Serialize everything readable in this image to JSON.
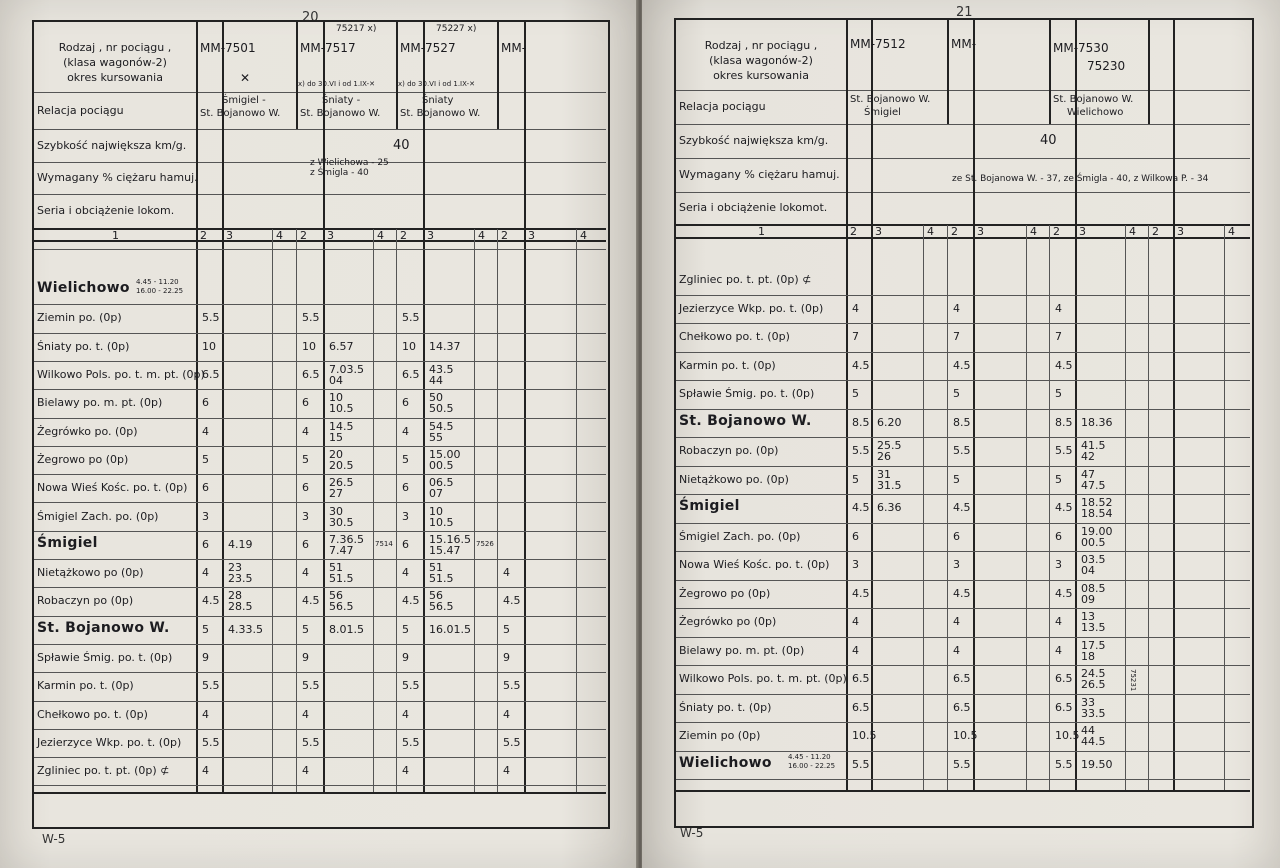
{
  "left": {
    "page_number": "20",
    "footer": "W-5",
    "header": {
      "rodzaj": [
        "Rodzaj , nr pociągu ,",
        "(klasa wagonów-2)",
        "okres kursowania"
      ],
      "relacja": "Relacja pociągu",
      "szybkosc": "Szybkość największa km/g.",
      "wymagany": "Wymagany % ciężaru hamuj.",
      "seria": "Seria i obciążenie lokom."
    },
    "trains": [
      {
        "code": "MM-7501",
        "note": "✕",
        "relation": [
          "Śmigiel -",
          "St. Bojanowo W."
        ]
      },
      {
        "code": "MM-7517",
        "top": "75217 x)",
        "note": "x) do 30.VI i od 1.IX-✕",
        "relation": [
          "Śniaty -",
          "St. Bojanowo W."
        ]
      },
      {
        "code": "MM-7527",
        "top": "75227 x)",
        "note": "x) do 30.VI i od 1.IX-✕",
        "relation": [
          "Śniaty",
          "St. Bojanowo W."
        ]
      },
      {
        "code": "MM-",
        "top": "",
        "note": "",
        "relation": [
          "",
          ""
        ]
      }
    ],
    "speed": "40",
    "brake": [
      "z Wielichowa  -  25",
      "z Śmigla  -  40"
    ],
    "col_numbers": [
      "1",
      "2",
      "3",
      "4",
      "2",
      "3",
      "4",
      "2",
      "3",
      "4",
      "2",
      "3",
      "4"
    ],
    "station_big_note": [
      "4.45 - 11.20",
      "16.00 - 22.25"
    ],
    "rows": [
      {
        "name": "Wielichowo",
        "big": true,
        "note": true,
        "c": [
          "",
          "",
          "",
          "",
          "",
          "",
          ""
        ]
      },
      {
        "name": "Ziemin po. (0p)",
        "c": [
          "5.5",
          "",
          "5.5",
          "",
          "5.5",
          "",
          ""
        ]
      },
      {
        "name": "Śniaty po. t. (0p)",
        "c": [
          "10",
          "",
          "10",
          "6.57",
          "10",
          "14.37",
          ""
        ]
      },
      {
        "name": "Wilkowo Pols. po. t. m. pt. (0p)",
        "c": [
          "6.5",
          "",
          "6.5",
          "7.03.5|04",
          "6.5",
          "43.5|44",
          ""
        ]
      },
      {
        "name": "Bielawy po. m. pt. (0p)",
        "c": [
          "6",
          "",
          "6",
          "10|10.5",
          "6",
          "50|50.5",
          ""
        ]
      },
      {
        "name": "Żegrówko po. (0p)",
        "c": [
          "4",
          "",
          "4",
          "14.5|15",
          "4",
          "54.5|55",
          ""
        ]
      },
      {
        "name": "Żegrowo po (0p)",
        "c": [
          "5",
          "",
          "5",
          "20|20.5",
          "5",
          "15.00|00.5",
          ""
        ]
      },
      {
        "name": "Nowa Wieś Kośc. po. t. (0p)",
        "c": [
          "6",
          "",
          "6",
          "26.5|27",
          "6",
          "06.5|07",
          ""
        ]
      },
      {
        "name": "Śmigiel Zach. po. (0p)",
        "c": [
          "3",
          "",
          "3",
          "30|30.5",
          "3",
          "10|10.5",
          ""
        ]
      },
      {
        "name": "Śmigiel",
        "big": true,
        "c": [
          "6",
          "4.19",
          "6",
          "7.36.5|7.47",
          "6",
          "15.16.5|15.47",
          ""
        ],
        "side": [
          "7514",
          "7526"
        ]
      },
      {
        "name": "Nietążkowo po (0p)",
        "c": [
          "4",
          "23|23.5",
          "4",
          "51|51.5",
          "4",
          "51|51.5",
          "4"
        ]
      },
      {
        "name": "Robaczyn po (0p)",
        "c": [
          "4.5",
          "28|28.5",
          "4.5",
          "56|56.5",
          "4.5",
          "56|56.5",
          "4.5"
        ]
      },
      {
        "name": "St. Bojanowo W.",
        "big": true,
        "c": [
          "5",
          "4.33.5",
          "5",
          "8.01.5",
          "5",
          "16.01.5",
          "5"
        ]
      },
      {
        "name": "Spławie Śmig. po. t. (0p)",
        "c": [
          "9",
          "",
          "9",
          "",
          "9",
          "",
          "9"
        ]
      },
      {
        "name": "Karmin po. t. (0p)",
        "c": [
          "5.5",
          "",
          "5.5",
          "",
          "5.5",
          "",
          "5.5"
        ]
      },
      {
        "name": "Chełkowo po. t. (0p)",
        "c": [
          "4",
          "",
          "4",
          "",
          "4",
          "",
          "4"
        ]
      },
      {
        "name": "Jezierzyce Wkp. po. t. (0p)",
        "c": [
          "5.5",
          "",
          "5.5",
          "",
          "5.5",
          "",
          "5.5"
        ]
      },
      {
        "name": "Zgliniec po. t. pt. (0p) ⊄",
        "c": [
          "4",
          "",
          "4",
          "",
          "4",
          "",
          "4"
        ]
      }
    ]
  },
  "right": {
    "page_number": "21",
    "footer": "W-5",
    "header": {
      "rodzaj": [
        "Rodzaj , nr pociągu ,",
        "(klasa wagonów-2)",
        "okres kursowania"
      ],
      "relacja": "Relacja pociągu",
      "szybkosc": "Szybkość największa km/g.",
      "wymagany": "Wymagany % ciężaru hamuj.",
      "seria": "Seria i obciążenie lokomot."
    },
    "trains": [
      {
        "code": "MM-7512",
        "relation": [
          "St. Bojanowo W.",
          "Śmigiel"
        ]
      },
      {
        "code": "MM-",
        "relation": [
          "",
          ""
        ]
      },
      {
        "code": "MM-7530",
        "code2": "75230",
        "relation": [
          "St. Bojanowo W.",
          "Wielichowo"
        ]
      }
    ],
    "speed": "40",
    "brake": "ze St. Bojanowa W. - 37, ze Śmigla - 40, z Wilkowa P. - 34",
    "col_numbers": [
      "1",
      "2",
      "3",
      "4",
      "2",
      "3",
      "4",
      "2",
      "3",
      "4",
      "2",
      "3",
      "4"
    ],
    "station_big_note": [
      "4.45 - 11.20",
      "16.00 - 22.25"
    ],
    "rows": [
      {
        "name": "Zgliniec po. t. pt. (0p) ⊄",
        "c": [
          "",
          "",
          "",
          "",
          "",
          "",
          ""
        ]
      },
      {
        "name": "Jezierzyce Wkp. po. t. (0p)",
        "c": [
          "4",
          "",
          "4",
          "",
          "4",
          "",
          ""
        ]
      },
      {
        "name": "Chełkowo po. t. (0p)",
        "c": [
          "7",
          "",
          "7",
          "",
          "7",
          "",
          ""
        ]
      },
      {
        "name": "Karmin po. t. (0p)",
        "c": [
          "4.5",
          "",
          "4.5",
          "",
          "4.5",
          "",
          ""
        ]
      },
      {
        "name": "Spławie Śmig. po. t. (0p)",
        "c": [
          "5",
          "",
          "5",
          "",
          "5",
          "",
          ""
        ]
      },
      {
        "name": "St. Bojanowo W.",
        "big": true,
        "c": [
          "8.5",
          "6.20",
          "8.5",
          "",
          "8.5",
          "18.36",
          ""
        ]
      },
      {
        "name": "Robaczyn po. (0p)",
        "c": [
          "5.5",
          "25.5|26",
          "5.5",
          "",
          "5.5",
          "41.5|42",
          ""
        ]
      },
      {
        "name": "Nietążkowo po. (0p)",
        "c": [
          "5",
          "31|31.5",
          "5",
          "",
          "5",
          "47|47.5",
          ""
        ]
      },
      {
        "name": "Śmigiel",
        "big": true,
        "c": [
          "4.5",
          "6.36",
          "4.5",
          "",
          "4.5",
          "18.52|18.54",
          ""
        ]
      },
      {
        "name": "Śmigiel Zach. po. (0p)",
        "c": [
          "6",
          "",
          "6",
          "",
          "6",
          "19.00|00.5",
          ""
        ]
      },
      {
        "name": "Nowa Wieś Kośc. po. t. (0p)",
        "c": [
          "3",
          "",
          "3",
          "",
          "3",
          "03.5|04",
          ""
        ]
      },
      {
        "name": "Żegrowo po (0p)",
        "c": [
          "4.5",
          "",
          "4.5",
          "",
          "4.5",
          "08.5|09",
          ""
        ]
      },
      {
        "name": "Żegrówko po (0p)",
        "c": [
          "4",
          "",
          "4",
          "",
          "4",
          "13|13.5",
          ""
        ]
      },
      {
        "name": "Bielawy po. m. pt. (0p)",
        "c": [
          "4",
          "",
          "4",
          "",
          "4",
          "17.5|18",
          ""
        ]
      },
      {
        "name": "Wilkowo Pols. po. t. m. pt. (0p)",
        "c": [
          "6.5",
          "",
          "6.5",
          "",
          "6.5",
          "24.5|26.5",
          ""
        ],
        "side": "75231"
      },
      {
        "name": "Śniaty po. t. (0p)",
        "c": [
          "6.5",
          "",
          "6.5",
          "",
          "6.5",
          "33|33.5",
          ""
        ]
      },
      {
        "name": "Ziemin po (0p)",
        "c": [
          "10.5",
          "",
          "10.5",
          "",
          "10.5",
          "44|44.5",
          ""
        ]
      },
      {
        "name": "Wielichowo",
        "big": true,
        "note": true,
        "c": [
          "5.5",
          "",
          "5.5",
          "",
          "5.5",
          "19.50",
          ""
        ]
      }
    ]
  }
}
